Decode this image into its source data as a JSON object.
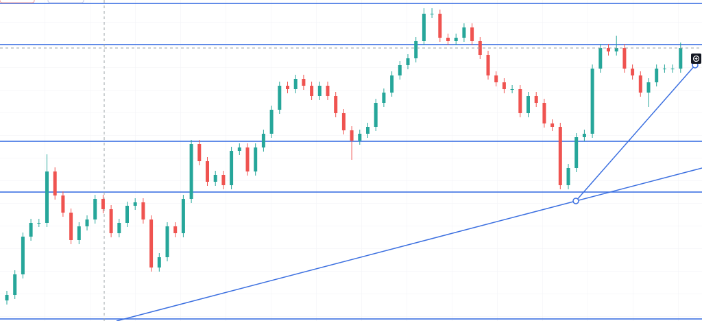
{
  "chart_data": {
    "type": "candlestick",
    "ylim": [
      0,
      468
    ],
    "up_color": "#26a69a",
    "down_color": "#ef5350",
    "level_color": "#2f66e0",
    "grid": true,
    "levels": [
      463,
      403,
      262,
      188,
      3
    ],
    "ohlc": [
      [
        30,
        44,
        24,
        38
      ],
      [
        38,
        74,
        32,
        68
      ],
      [
        68,
        129,
        62,
        123
      ],
      [
        123,
        149,
        117,
        143
      ],
      [
        143,
        149,
        137,
        143
      ],
      [
        143,
        243,
        137,
        218
      ],
      [
        218,
        224,
        177,
        183
      ],
      [
        183,
        189,
        152,
        158
      ],
      [
        158,
        164,
        112,
        118
      ],
      [
        118,
        144,
        112,
        138
      ],
      [
        138,
        154,
        132,
        148
      ],
      [
        148,
        184,
        142,
        178
      ],
      [
        178,
        184,
        157,
        163
      ],
      [
        163,
        169,
        122,
        128
      ],
      [
        128,
        149,
        122,
        143
      ],
      [
        143,
        174,
        137,
        168
      ],
      [
        168,
        179,
        162,
        173
      ],
      [
        173,
        179,
        142,
        148
      ],
      [
        148,
        154,
        72,
        78
      ],
      [
        78,
        99,
        72,
        93
      ],
      [
        93,
        144,
        87,
        138
      ],
      [
        138,
        144,
        122,
        128
      ],
      [
        128,
        184,
        122,
        178
      ],
      [
        178,
        264,
        172,
        258
      ],
      [
        258,
        264,
        227,
        233
      ],
      [
        233,
        239,
        197,
        203
      ],
      [
        203,
        219,
        197,
        213
      ],
      [
        213,
        219,
        192,
        198
      ],
      [
        198,
        254,
        192,
        248
      ],
      [
        248,
        259,
        242,
        253
      ],
      [
        253,
        259,
        212,
        218
      ],
      [
        218,
        259,
        212,
        253
      ],
      [
        253,
        279,
        247,
        273
      ],
      [
        273,
        314,
        267,
        308
      ],
      [
        308,
        349,
        302,
        343
      ],
      [
        343,
        349,
        332,
        338
      ],
      [
        338,
        359,
        332,
        353
      ],
      [
        353,
        359,
        337,
        343
      ],
      [
        343,
        349,
        322,
        328
      ],
      [
        328,
        349,
        322,
        343
      ],
      [
        343,
        349,
        322,
        328
      ],
      [
        328,
        334,
        297,
        303
      ],
      [
        303,
        309,
        272,
        278
      ],
      [
        278,
        284,
        235,
        263
      ],
      [
        263,
        279,
        257,
        273
      ],
      [
        273,
        289,
        267,
        283
      ],
      [
        283,
        324,
        277,
        318
      ],
      [
        318,
        339,
        312,
        333
      ],
      [
        333,
        364,
        327,
        358
      ],
      [
        358,
        379,
        352,
        373
      ],
      [
        373,
        389,
        367,
        383
      ],
      [
        383,
        414,
        377,
        408
      ],
      [
        408,
        456,
        402,
        448
      ],
      [
        448,
        456,
        442,
        448
      ],
      [
        448,
        454,
        407,
        413
      ],
      [
        413,
        419,
        402,
        408
      ],
      [
        408,
        419,
        402,
        413
      ],
      [
        413,
        434,
        407,
        428
      ],
      [
        428,
        434,
        402,
        408
      ],
      [
        408,
        414,
        382,
        388
      ],
      [
        388,
        394,
        352,
        358
      ],
      [
        358,
        364,
        342,
        348
      ],
      [
        348,
        354,
        332,
        338
      ],
      [
        338,
        344,
        332,
        338
      ],
      [
        338,
        344,
        297,
        303
      ],
      [
        303,
        334,
        297,
        328
      ],
      [
        328,
        334,
        312,
        318
      ],
      [
        318,
        324,
        282,
        288
      ],
      [
        288,
        294,
        277,
        283
      ],
      [
        283,
        289,
        192,
        198
      ],
      [
        198,
        229,
        192,
        223
      ],
      [
        223,
        274,
        217,
        268
      ],
      [
        268,
        279,
        262,
        273
      ],
      [
        273,
        374,
        267,
        368
      ],
      [
        368,
        404,
        362,
        398
      ],
      [
        398,
        404,
        387,
        393
      ],
      [
        393,
        416,
        387,
        398
      ],
      [
        398,
        404,
        362,
        368
      ],
      [
        368,
        374,
        352,
        358
      ],
      [
        358,
        364,
        327,
        333
      ],
      [
        333,
        354,
        312,
        348
      ],
      [
        348,
        374,
        342,
        368
      ],
      [
        368,
        374,
        362,
        368
      ],
      [
        368,
        374,
        362,
        368
      ],
      [
        368,
        406,
        362,
        398
      ]
    ]
  }
}
